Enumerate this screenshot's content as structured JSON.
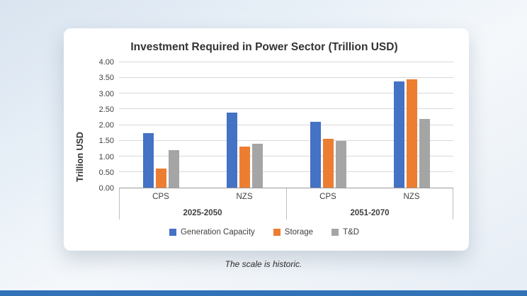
{
  "page": {
    "caption": "The scale is historic."
  },
  "colors": {
    "accent_bar": "#3273b8"
  },
  "chart_data": {
    "type": "bar",
    "title": "Investment Required in Power Sector (Trillion USD)",
    "xlabel": "",
    "ylabel": "Trillion USD",
    "ylim": [
      0,
      4
    ],
    "ytick_step": 0.5,
    "grid": true,
    "legend_position": "bottom",
    "group_labels": [
      "2025-2050",
      "2051-2070"
    ],
    "categories": [
      "CPS",
      "NZS",
      "CPS",
      "NZS"
    ],
    "series": [
      {
        "name": "Generation Capacity",
        "color": "#4472C4",
        "values": [
          1.75,
          2.4,
          2.1,
          3.4
        ]
      },
      {
        "name": "Storage",
        "color": "#ED7D31",
        "values": [
          0.6,
          1.3,
          1.55,
          3.45
        ]
      },
      {
        "name": "T&D",
        "color": "#A5A5A5",
        "values": [
          1.2,
          1.4,
          1.5,
          2.2
        ]
      }
    ]
  }
}
